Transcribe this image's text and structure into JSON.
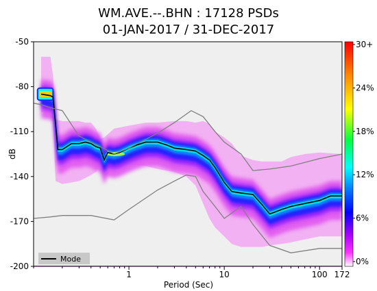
{
  "figure": {
    "title_line1": "WM.AVE.--.BHN : 17128 PSDs",
    "title_line2": "01-JAN-2017 / 31-DEC-2017"
  },
  "chart_data": {
    "type": "heatmap",
    "title": "WM.AVE.--.BHN : 17128 PSDs 01-JAN-2017 / 31-DEC-2017",
    "xlabel": "Period (Sec)",
    "ylabel": "dB",
    "xscale": "log",
    "xlim": [
      0.1,
      172
    ],
    "ylim": [
      -200,
      -50
    ],
    "x_ticks": [
      1,
      10,
      100,
      172
    ],
    "x_tick_labels": [
      "1",
      "10",
      "100",
      "172"
    ],
    "y_ticks": [
      -50,
      -80,
      -110,
      -140,
      -170,
      -200
    ],
    "y_tick_labels": [
      "-50",
      "-80",
      "-110",
      "-140",
      "-170",
      "-200"
    ],
    "colorbar": {
      "ticks": [
        "30+",
        "24%",
        "18%",
        "12%",
        "6%",
        "0%"
      ],
      "colors": [
        "#ff0000",
        "#ff8000",
        "#ffff00",
        "#00ff00",
        "#00ffff",
        "#0000ff",
        "#ff00ff",
        "#ffffff"
      ]
    },
    "legend": {
      "label": "Mode",
      "position": "bottom-left"
    },
    "series": [
      {
        "name": "Mode",
        "color": "#000000",
        "x": [
          0.12,
          0.15,
          0.16,
          0.18,
          0.2,
          0.25,
          0.3,
          0.35,
          0.4,
          0.45,
          0.5,
          0.55,
          0.6,
          0.7,
          0.8,
          1.0,
          1.2,
          1.5,
          2.0,
          2.5,
          3.0,
          4.0,
          5.0,
          6.0,
          7.0,
          8.0,
          10,
          12,
          15,
          20,
          25,
          30,
          40,
          50,
          70,
          100,
          130,
          172
        ],
        "y": [
          -85,
          -86,
          -87,
          -122,
          -122,
          -118,
          -118,
          -117,
          -118,
          -120,
          -121,
          -129,
          -124,
          -125,
          -124,
          -121,
          -119,
          -117,
          -117,
          -119,
          -121,
          -122,
          -123,
          -126,
          -129,
          -134,
          -144,
          -150,
          -151,
          -152,
          -159,
          -165,
          -162,
          -160,
          -158,
          -156,
          -153,
          -153
        ]
      },
      {
        "name": "",
        "color": "#7f7f7f",
        "x": [
          0.1,
          0.12,
          0.15,
          0.2,
          0.3,
          0.5,
          0.7,
          1.0,
          2.0,
          3.0,
          4.5,
          6.0,
          8.0,
          10,
          15,
          20,
          30,
          50,
          100,
          172
        ],
        "y": [
          -91,
          -92,
          -94,
          -96,
          -113,
          -120,
          -125,
          -121,
          -111,
          -104,
          -96,
          -100,
          -110,
          -117,
          -125,
          -136,
          -135,
          -133,
          -128,
          -125
        ]
      },
      {
        "name": "",
        "color": "#7f7f7f",
        "x": [
          0.1,
          0.15,
          0.2,
          0.4,
          0.7,
          1.0,
          2.0,
          3.0,
          4.0,
          5.0,
          6.0,
          8.0,
          10,
          15,
          20,
          30,
          50,
          100,
          172
        ],
        "y": [
          -168,
          -167,
          -166,
          -166,
          -169,
          -162,
          -149,
          -143,
          -139,
          -140,
          -150,
          -160,
          -168,
          -160,
          -172,
          -186,
          -191,
          -188,
          -188
        ]
      }
    ],
    "density_band_upper": [
      -60,
      -60,
      -73,
      -102,
      -103,
      -103,
      -103,
      -104,
      -104,
      -108,
      -115,
      -114,
      -108,
      -106,
      -104,
      -104,
      -103,
      -103,
      -104,
      -103,
      -105,
      -110,
      -114,
      -118,
      -126,
      -129,
      -130,
      -130,
      -130,
      -127,
      -125,
      -124,
      -125
    ],
    "density_band_lower": [
      -97,
      -97,
      -104,
      -143,
      -145,
      -144,
      -143,
      -141,
      -139,
      -137,
      -132,
      -130,
      -131,
      -132,
      -133,
      -135,
      -137,
      -140,
      -146,
      -158,
      -168,
      -174,
      -180,
      -185,
      -187,
      -187,
      -187,
      -186,
      -185,
      -184,
      -182,
      -180,
      -180
    ],
    "density_band_x": [
      0.12,
      0.15,
      0.16,
      0.17,
      0.2,
      0.25,
      0.3,
      0.35,
      0.4,
      0.45,
      0.5,
      0.55,
      0.7,
      1.0,
      1.5,
      2.0,
      3.0,
      4.0,
      5.0,
      6.0,
      7.0,
      8.0,
      10,
      12,
      15,
      20,
      25,
      30,
      40,
      50,
      70,
      100,
      172
    ]
  }
}
